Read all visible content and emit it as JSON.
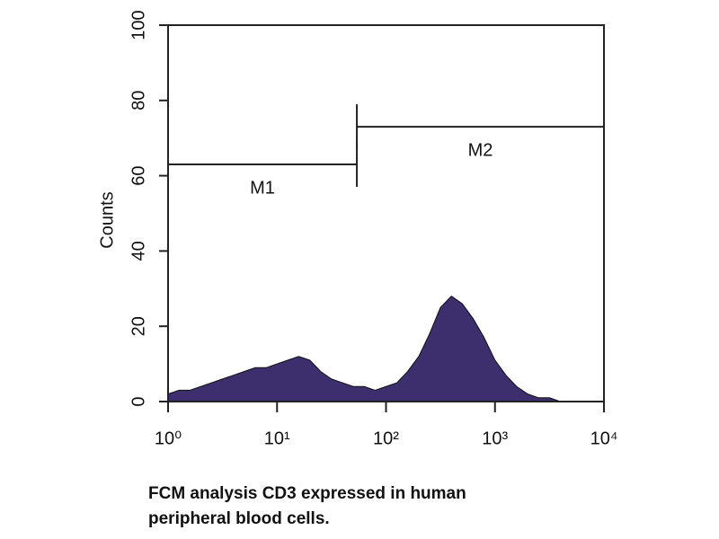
{
  "chart_data": {
    "type": "histogram-area",
    "ylabel": "Counts",
    "caption_lines": [
      "FCM analysis CD3 expressed in human",
      "peripheral blood cells."
    ],
    "xscale": "log",
    "xlim": [
      1,
      10000
    ],
    "xticks": [
      {
        "value": 1,
        "label": "10⁰"
      },
      {
        "value": 10,
        "label": "10¹"
      },
      {
        "value": 100,
        "label": "10²"
      },
      {
        "value": 1000,
        "label": "10³"
      },
      {
        "value": 10000,
        "label": "10⁴"
      }
    ],
    "ylim": [
      0,
      100
    ],
    "yticks": [
      0,
      20,
      40,
      60,
      80,
      100
    ],
    "color": "#3d2f6e",
    "x": [
      1,
      1.26,
      1.58,
      2,
      2.51,
      3.16,
      3.98,
      5.01,
      6.31,
      7.94,
      10,
      12.6,
      15.8,
      20,
      25.1,
      31.6,
      39.8,
      50.1,
      63.1,
      79.4,
      100,
      126,
      158,
      200,
      251,
      316,
      398,
      501,
      631,
      794,
      1000,
      1260,
      1580,
      2000,
      2510,
      3160,
      3980,
      5010,
      6310,
      7940,
      10000
    ],
    "values": [
      2,
      3,
      3,
      4,
      5,
      6,
      7,
      8,
      9,
      9,
      10,
      11,
      12,
      11,
      8,
      6,
      5,
      4,
      4,
      3,
      4,
      5,
      8,
      12,
      18,
      25,
      28,
      26,
      22,
      17,
      11,
      7,
      4,
      2,
      1,
      1,
      0,
      0,
      0,
      0,
      0
    ],
    "markers": [
      {
        "label": "M1",
        "range": [
          1,
          54
        ],
        "y": 63
      },
      {
        "label": "M2",
        "range": [
          54,
          10000
        ],
        "y": 73
      }
    ]
  }
}
